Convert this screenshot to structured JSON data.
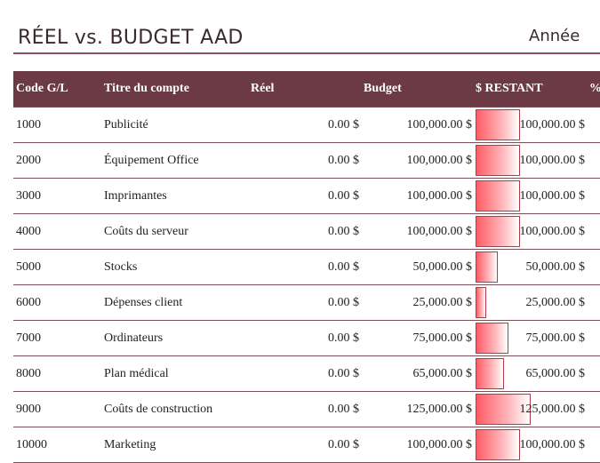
{
  "header": {
    "title": "RÉEL vs. BUDGET AAD",
    "year_label": "Année"
  },
  "table": {
    "columns": [
      "Code G/L",
      "Titre du compte",
      "Réel",
      "Budget",
      "$ RESTANT",
      "%"
    ],
    "rows": [
      {
        "code": "1000",
        "name": "Publicité",
        "reel": "0.00 $",
        "budget": "100,000.00 $",
        "restant": "100,000.00 $",
        "restant_value": 100000
      },
      {
        "code": "2000",
        "name": "Équipement Office",
        "reel": "0.00 $",
        "budget": "100,000.00 $",
        "restant": "100,000.00 $",
        "restant_value": 100000
      },
      {
        "code": "3000",
        "name": "Imprimantes",
        "reel": "0.00 $",
        "budget": "100,000.00 $",
        "restant": "100,000.00 $",
        "restant_value": 100000
      },
      {
        "code": "4000",
        "name": "Coûts du serveur",
        "reel": "0.00 $",
        "budget": "100,000.00 $",
        "restant": "100,000.00 $",
        "restant_value": 100000
      },
      {
        "code": "5000",
        "name": "Stocks",
        "reel": "0.00 $",
        "budget": "50,000.00 $",
        "restant": "50,000.00 $",
        "restant_value": 50000
      },
      {
        "code": "6000",
        "name": "Dépenses client",
        "reel": "0.00 $",
        "budget": "25,000.00 $",
        "restant": "25,000.00 $",
        "restant_value": 25000
      },
      {
        "code": "7000",
        "name": "Ordinateurs",
        "reel": "0.00 $",
        "budget": "75,000.00 $",
        "restant": "75,000.00 $",
        "restant_value": 75000
      },
      {
        "code": "8000",
        "name": "Plan médical",
        "reel": "0.00 $",
        "budget": "65,000.00 $",
        "restant": "65,000.00 $",
        "restant_value": 65000
      },
      {
        "code": "9000",
        "name": "Coûts de construction",
        "reel": "0.00 $",
        "budget": "125,000.00 $",
        "restant": "125,000.00 $",
        "restant_value": 125000
      },
      {
        "code": "10000",
        "name": "Marketing",
        "reel": "0.00 $",
        "budget": "100,000.00 $",
        "restant": "100,000.00 $",
        "restant_value": 100000
      }
    ]
  },
  "colors": {
    "header_bg": "#6b3a44",
    "title_rule": "#8b4f5f",
    "bar_fill": "#ff5b66",
    "bar_border": "#b23a4a"
  }
}
